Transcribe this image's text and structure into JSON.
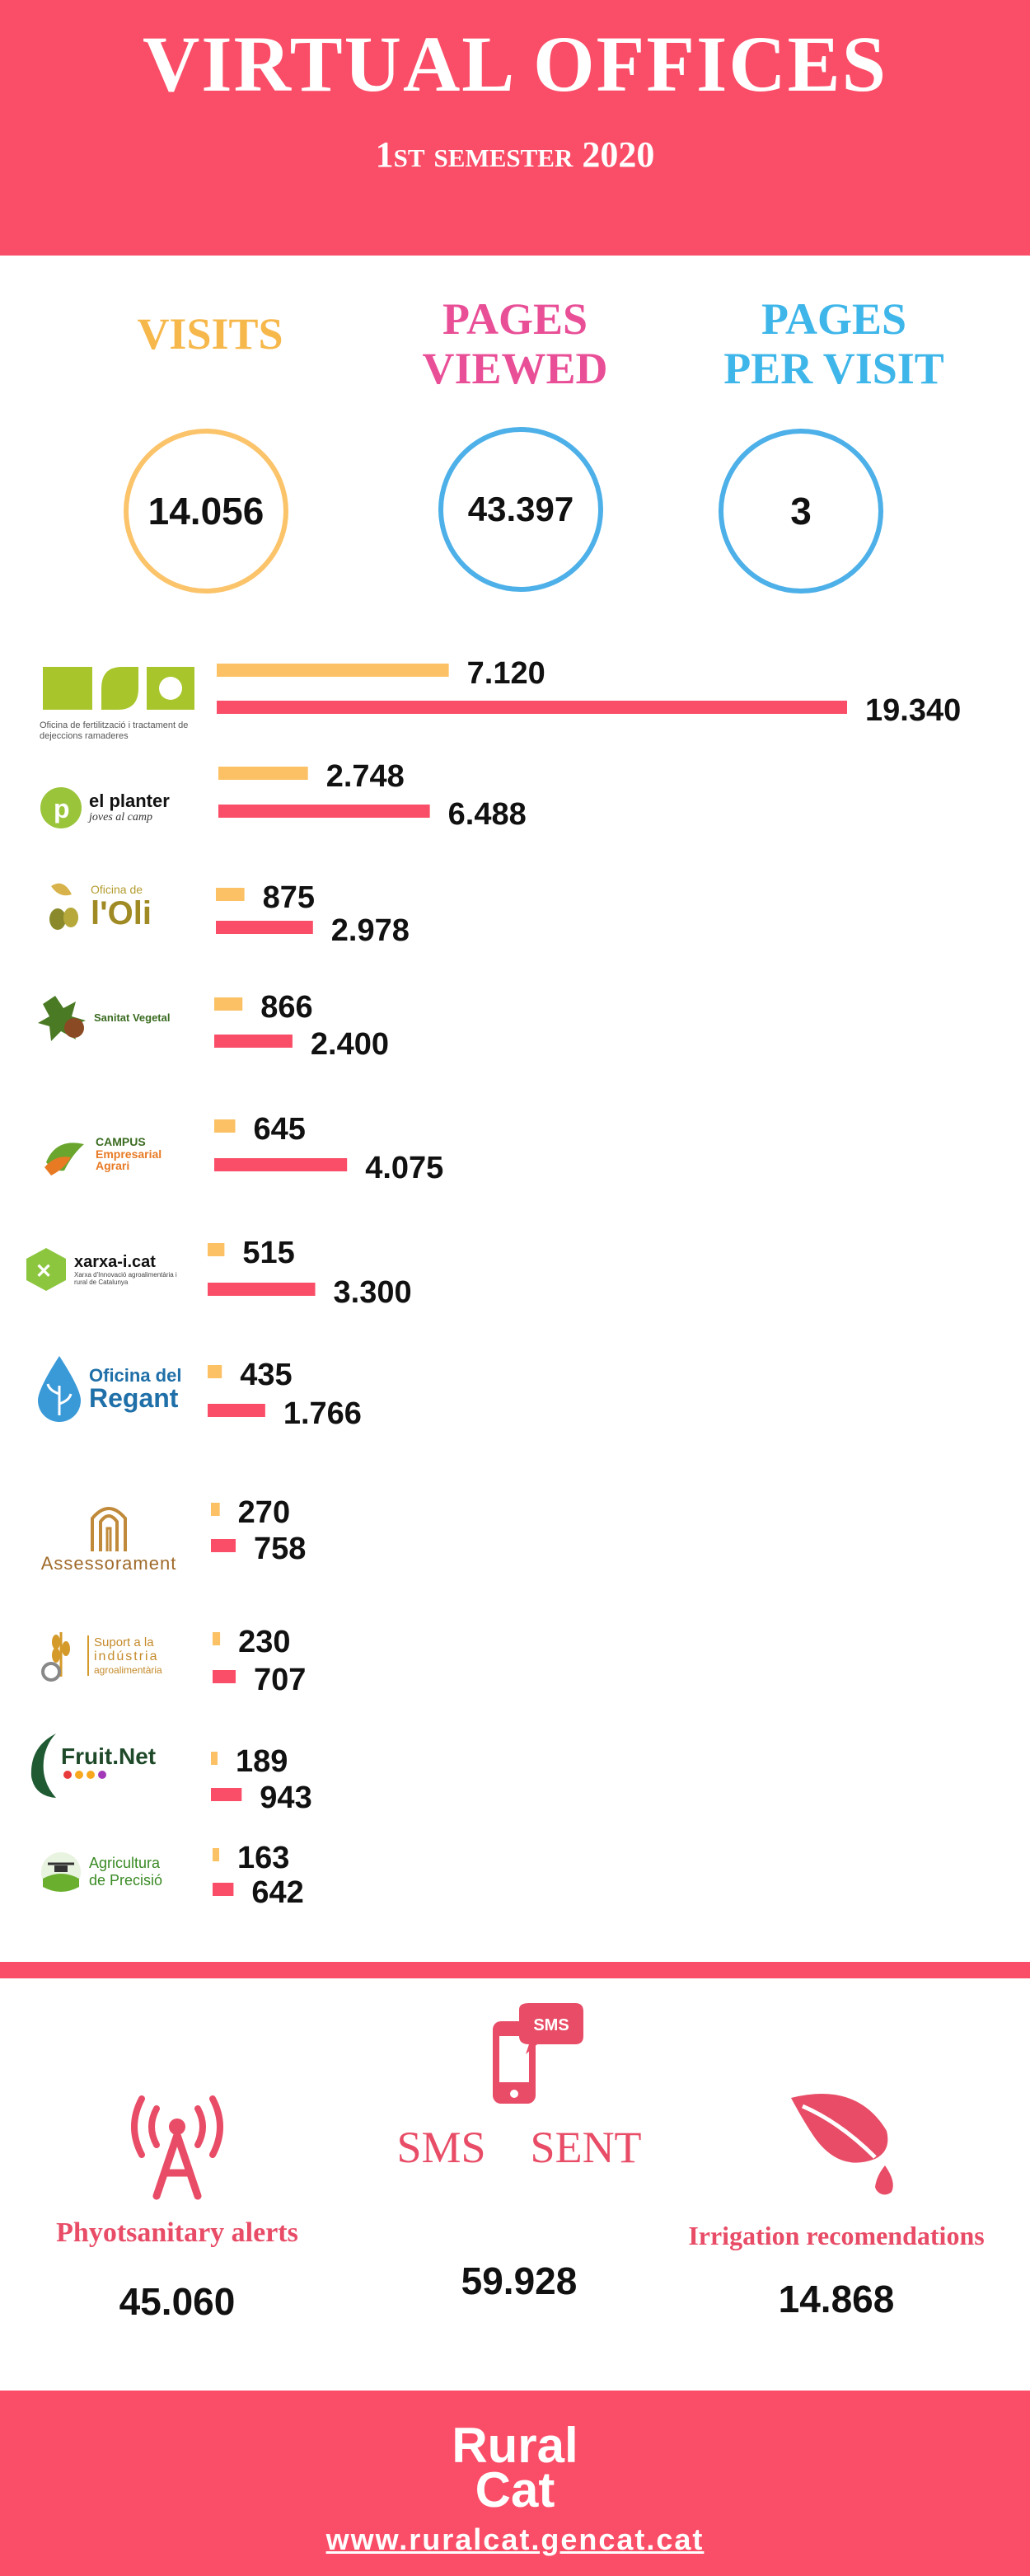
{
  "header": {
    "title": "VIRTUAL OFFICES",
    "subtitle": "1st semester 2020"
  },
  "kpis": [
    {
      "label_line1": "VISITS",
      "label_line2": "",
      "value": "14.056",
      "label_color": "#f7b84b",
      "circle_color": "#fbc46a"
    },
    {
      "label_line1": "PAGES",
      "label_line2": "VIEWED",
      "value": "43.397",
      "label_color": "#e94f97",
      "circle_color": "#4db0e8"
    },
    {
      "label_line1": "PAGES",
      "label_line2": "PER VISIT",
      "value": "3",
      "label_color": "#3fb6e9",
      "circle_color": "#4db0e8"
    }
  ],
  "offices": [
    {
      "logo": "Oficina de fertilització i tractament de dejeccions ramaderes",
      "icon": "fertilization-office-logo"
    },
    {
      "logo_line1": "el planter",
      "logo_line2": "joves al camp",
      "icon": "el-planter-logo"
    },
    {
      "logo_line1": "Oficina de",
      "logo_line2": "l'Oli",
      "icon": "olive-oil-office-logo"
    },
    {
      "logo_line1": "Sanitat Vegetal",
      "icon": "plant-health-logo"
    },
    {
      "logo_line1": "CAMPUS",
      "logo_line2": "Empresarial",
      "logo_line3": "Agrari",
      "icon": "campus-logo"
    },
    {
      "logo_line1": "xarxa-i.cat",
      "logo_line2": "Xarxa d'Innovació agroalimentària i rural de Catalunya",
      "icon": "xarxa-logo"
    },
    {
      "logo_line1": "Oficina del",
      "logo_line2": "Regant",
      "icon": "irrigator-office-logo"
    },
    {
      "logo_line1": "Assessorament",
      "icon": "advisory-logo"
    },
    {
      "logo_line1": "Suport a la",
      "logo_line2": "indústria",
      "logo_line3": "agroalimentària",
      "icon": "agrifood-industry-logo"
    },
    {
      "logo_line1": "Fruit.Net",
      "icon": "fruitnet-logo"
    },
    {
      "logo_line1": "Agricultura",
      "logo_line2": "de Precisió",
      "icon": "precision-agriculture-logo"
    }
  ],
  "chart_data": {
    "type": "bar",
    "orientation": "horizontal",
    "categories": [
      "Oficina de fertilització i tractament de dejeccions ramaderes",
      "el planter",
      "Oficina de l'Oli",
      "Sanitat Vegetal",
      "Campus Empresarial Agrari",
      "xarxa-i.cat",
      "Oficina del Regant",
      "Assessorament",
      "Suport a la indústria agroalimentària",
      "Fruit.Net",
      "Agricultura de Precisió"
    ],
    "series": [
      {
        "name": "",
        "color": "#fbc164",
        "values": [
          7120,
          2748,
          875,
          866,
          645,
          515,
          435,
          270,
          230,
          189,
          163
        ],
        "labels": [
          "7.120",
          "2.748",
          "875",
          "866",
          "645",
          "515",
          "435",
          "270",
          "230",
          "189",
          "163"
        ]
      },
      {
        "name": "",
        "color": "#fa4d67",
        "values": [
          19340,
          6488,
          2978,
          2400,
          4075,
          3300,
          1766,
          758,
          707,
          943,
          642
        ],
        "labels": [
          "19.340",
          "6.488",
          "2.978",
          "2.400",
          "4.075",
          "3.300",
          "1.766",
          "758",
          "707",
          "943",
          "642"
        ]
      }
    ],
    "grid": false,
    "legend": "none"
  },
  "sms": {
    "title_left": "SMS",
    "title_right": "SENT",
    "badge": "SMS",
    "total": "59.928",
    "alerts_label": "Phyotsanitary alerts",
    "alerts_value": "45.060",
    "irrigation_label": "Irrigation recomendations",
    "irrigation_value": "14.868"
  },
  "footer": {
    "brand_line1": "Rural",
    "brand_line2": "Cat",
    "url": "www.ruralcat.gencat.cat"
  },
  "colors": {
    "accent": "#fa4d67",
    "yellow": "#fbc164",
    "blue": "#4db0e8",
    "pink": "#e94f97"
  }
}
